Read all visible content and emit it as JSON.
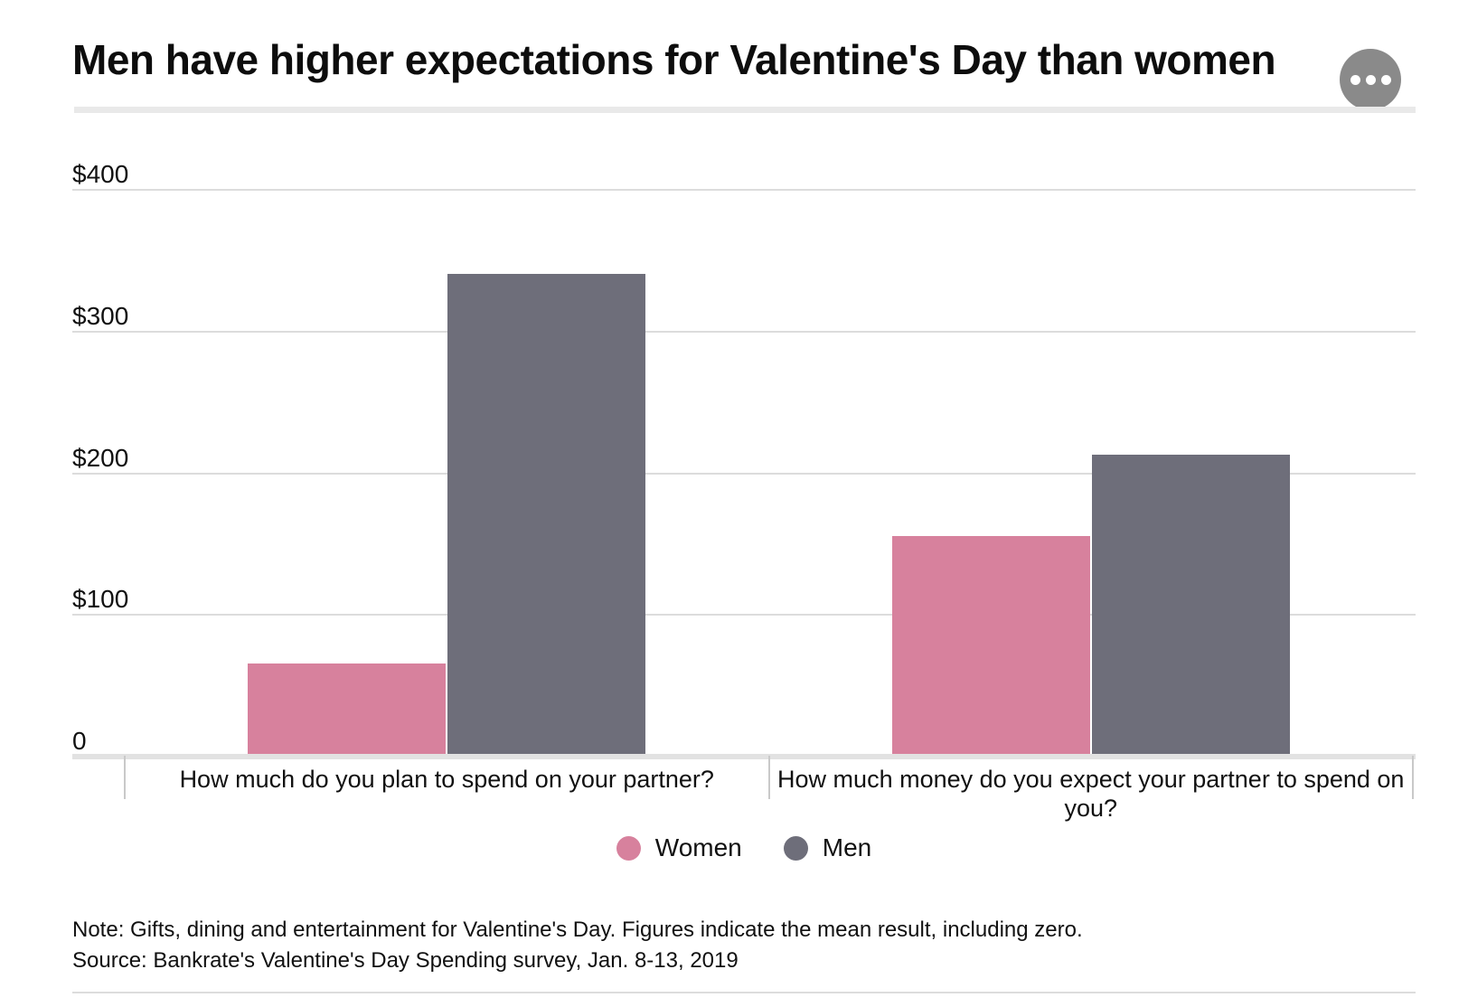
{
  "header": {
    "title": "Men have higher expectations for Valentine's Day than women",
    "more_button": "more-options"
  },
  "chart_data": {
    "type": "bar",
    "title": "Men have higher expectations for Valentine's Day than women",
    "categories": [
      "How much do you plan to spend on your partner?",
      "How much money do you expect your partner to spend on you?"
    ],
    "series": [
      {
        "name": "Women",
        "color": "#d7819d",
        "values": [
          64,
          154
        ]
      },
      {
        "name": "Men",
        "color": "#6e6e7a",
        "values": [
          339,
          211
        ]
      }
    ],
    "xlabel": "",
    "ylabel": "",
    "ylim": [
      0,
      400
    ],
    "yticks": [
      {
        "value": 0,
        "label": "0"
      },
      {
        "value": 100,
        "label": "$100"
      },
      {
        "value": 200,
        "label": "$200"
      },
      {
        "value": 300,
        "label": "$300"
      },
      {
        "value": 400,
        "label": "$400"
      }
    ],
    "grid": true,
    "legend_position": "bottom"
  },
  "footer": {
    "note": "Note: Gifts, dining and entertainment for Valentine's Day. Figures indicate the mean result, including zero.",
    "source": "Source: Bankrate's Valentine's Day Spending survey, Jan. 8-13, 2019"
  },
  "colors": {
    "women": "#d7819d",
    "men": "#6e6e7a",
    "gridline": "#dcdcdc",
    "baseline": "#e2e2e2",
    "more_button": "#8a8a8a",
    "divider": "#e9e9e9",
    "text": "#111111"
  }
}
